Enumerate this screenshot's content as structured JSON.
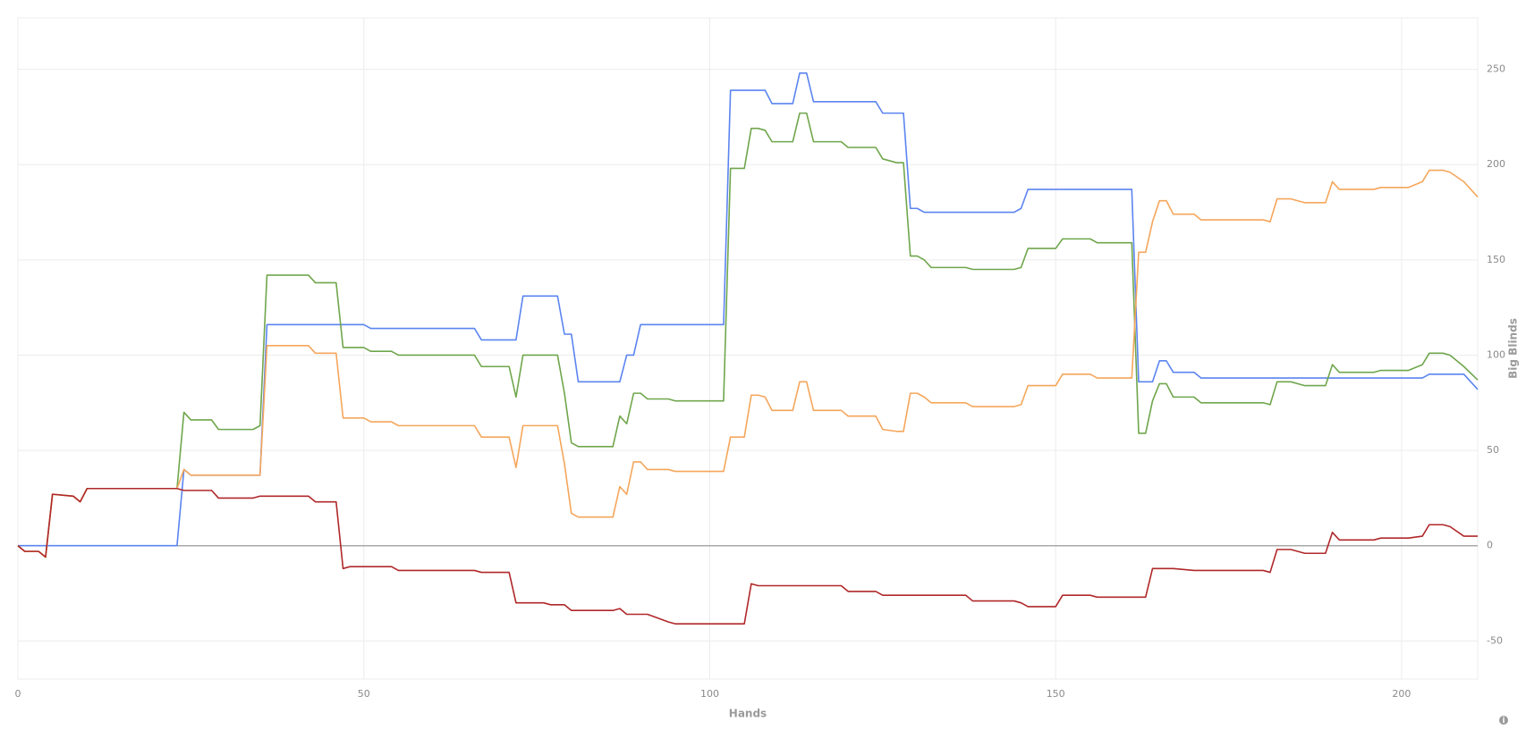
{
  "chart_data": {
    "type": "line",
    "x_label": "Hands",
    "y_label": "Big Blinds",
    "x": [
      0,
      1,
      3,
      4,
      5,
      8,
      9,
      10,
      22,
      23,
      24,
      25,
      28,
      29,
      34,
      35,
      36,
      42,
      43,
      46,
      47,
      48,
      50,
      51,
      54,
      55,
      66,
      67,
      71,
      72,
      73,
      76,
      77,
      78,
      79,
      80,
      81,
      86,
      87,
      88,
      89,
      90,
      91,
      94,
      95,
      102,
      103,
      105,
      106,
      107,
      108,
      109,
      112,
      113,
      114,
      115,
      119,
      120,
      124,
      125,
      127,
      128,
      129,
      130,
      131,
      132,
      137,
      138,
      144,
      145,
      146,
      150,
      151,
      155,
      156,
      161,
      162,
      163,
      164,
      165,
      166,
      167,
      170,
      171,
      180,
      181,
      182,
      184,
      186,
      189,
      190,
      191,
      196,
      197,
      201,
      203,
      204,
      206,
      207,
      209,
      211
    ],
    "series": [
      {
        "color": "#5b84f0",
        "values": [
          0,
          0,
          0,
          0,
          0,
          0,
          0,
          0,
          0,
          0,
          40,
          37,
          37,
          37,
          37,
          37,
          116,
          116,
          116,
          116,
          116,
          116,
          116,
          114,
          114,
          114,
          114,
          108,
          108,
          108,
          131,
          131,
          131,
          131,
          111,
          111,
          86,
          86,
          86,
          100,
          100,
          116,
          116,
          116,
          116,
          116,
          239,
          239,
          239,
          239,
          239,
          232,
          232,
          248,
          248,
          233,
          233,
          233,
          233,
          227,
          227,
          227,
          177,
          177,
          175,
          175,
          175,
          175,
          175,
          177,
          187,
          187,
          187,
          187,
          187,
          187,
          86,
          86,
          86,
          97,
          97,
          91,
          91,
          88,
          88,
          88,
          88,
          88,
          88,
          88,
          88,
          88,
          88,
          88,
          88,
          88,
          90,
          90,
          90,
          90,
          82
        ]
      },
      {
        "color": "#6fa64c",
        "values": [
          0,
          -3,
          -3,
          -6,
          27,
          26,
          23,
          30,
          30,
          30,
          70,
          66,
          66,
          61,
          61,
          63,
          142,
          142,
          138,
          138,
          104,
          104,
          104,
          102,
          102,
          100,
          100,
          94,
          94,
          78,
          100,
          100,
          100,
          100,
          80,
          54,
          52,
          52,
          68,
          64,
          80,
          80,
          77,
          77,
          76,
          76,
          198,
          198,
          219,
          219,
          218,
          212,
          212,
          227,
          227,
          212,
          212,
          209,
          209,
          203,
          201,
          201,
          152,
          152,
          150,
          146,
          146,
          145,
          145,
          146,
          156,
          156,
          161,
          161,
          159,
          159,
          59,
          59,
          76,
          85,
          85,
          78,
          78,
          75,
          75,
          74,
          86,
          86,
          84,
          84,
          95,
          91,
          91,
          92,
          92,
          95,
          101,
          101,
          100,
          94,
          87
        ]
      },
      {
        "color": "#f5a65b",
        "values": [
          0,
          -3,
          -3,
          -6,
          27,
          26,
          23,
          30,
          30,
          30,
          40,
          37,
          37,
          37,
          37,
          37,
          105,
          105,
          101,
          101,
          67,
          67,
          67,
          65,
          65,
          63,
          63,
          57,
          57,
          41,
          63,
          63,
          63,
          63,
          43,
          17,
          15,
          15,
          31,
          27,
          44,
          44,
          40,
          40,
          39,
          39,
          57,
          57,
          79,
          79,
          78,
          71,
          71,
          86,
          86,
          71,
          71,
          68,
          68,
          61,
          60,
          60,
          80,
          80,
          78,
          75,
          75,
          73,
          73,
          74,
          84,
          84,
          90,
          90,
          88,
          88,
          154,
          154,
          170,
          181,
          181,
          174,
          174,
          171,
          171,
          170,
          182,
          182,
          180,
          180,
          191,
          187,
          187,
          188,
          188,
          191,
          197,
          197,
          196,
          191,
          183
        ]
      },
      {
        "color": "#b0282a",
        "values": [
          0,
          -3,
          -3,
          -6,
          27,
          26,
          23,
          30,
          30,
          30,
          29,
          29,
          29,
          25,
          25,
          26,
          26,
          26,
          23,
          23,
          -12,
          -11,
          -11,
          -11,
          -11,
          -13,
          -13,
          -14,
          -14,
          -30,
          -30,
          -30,
          -31,
          -31,
          -31,
          -34,
          -34,
          -34,
          -33,
          -36,
          -36,
          -36,
          -36,
          -40,
          -41,
          -41,
          -41,
          -41,
          -20,
          -21,
          -21,
          -21,
          -21,
          -21,
          -21,
          -21,
          -21,
          -24,
          -24,
          -26,
          -26,
          -26,
          -26,
          -26,
          -26,
          -26,
          -26,
          -29,
          -29,
          -30,
          -32,
          -32,
          -26,
          -26,
          -27,
          -27,
          -27,
          -27,
          -12,
          -12,
          -12,
          -12,
          -13,
          -13,
          -13,
          -14,
          -2,
          -2,
          -4,
          -4,
          7,
          3,
          3,
          4,
          4,
          5,
          11,
          11,
          10,
          5,
          5
        ]
      }
    ],
    "xlim": [
      0,
      211
    ],
    "ylim": [
      -70,
      277
    ],
    "xticks": [
      0,
      50,
      100,
      150,
      200
    ],
    "yticks": [
      -50,
      0,
      50,
      100,
      150,
      200,
      250
    ],
    "grid": true
  }
}
